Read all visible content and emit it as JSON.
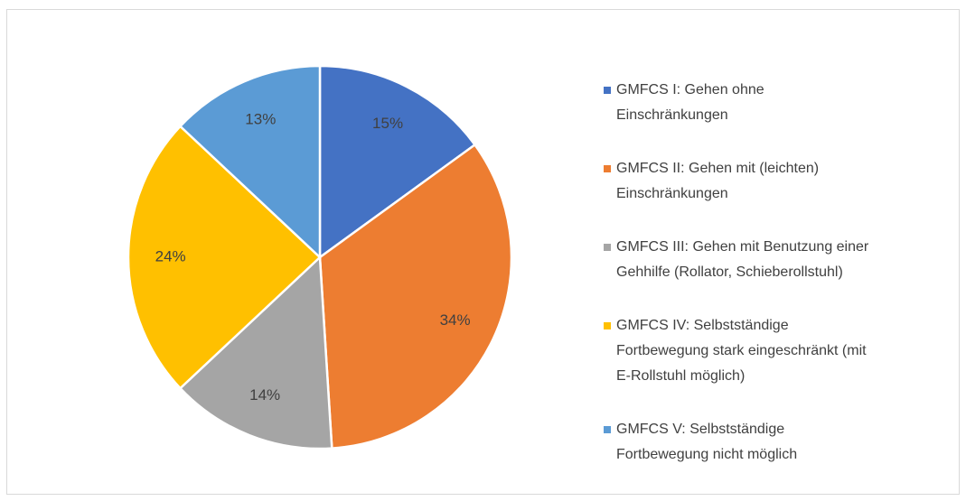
{
  "chart_data": {
    "type": "pie",
    "categories": [
      "GMFCS I: Gehen ohne Einschränkungen",
      "GMFCS II: Gehen mit (leichten) Einschränkungen",
      "GMFCS III: Gehen mit Benutzung einer Gehhilfe (Rollator, Schieberollstuhl)",
      "GMFCS IV: Selbstständige Fortbewegung stark eingeschränkt (mit E-Rollstuhl möglich)",
      "GMFCS V: Selbstständige Fortbewegung nicht möglich"
    ],
    "values": [
      15,
      34,
      14,
      24,
      13
    ],
    "value_labels": [
      "15%",
      "34%",
      "14%",
      "24%",
      "13%"
    ],
    "colors": [
      "#4472c4",
      "#ed7d31",
      "#a5a5a5",
      "#ffc000",
      "#5b9bd5"
    ],
    "legend": "right"
  }
}
